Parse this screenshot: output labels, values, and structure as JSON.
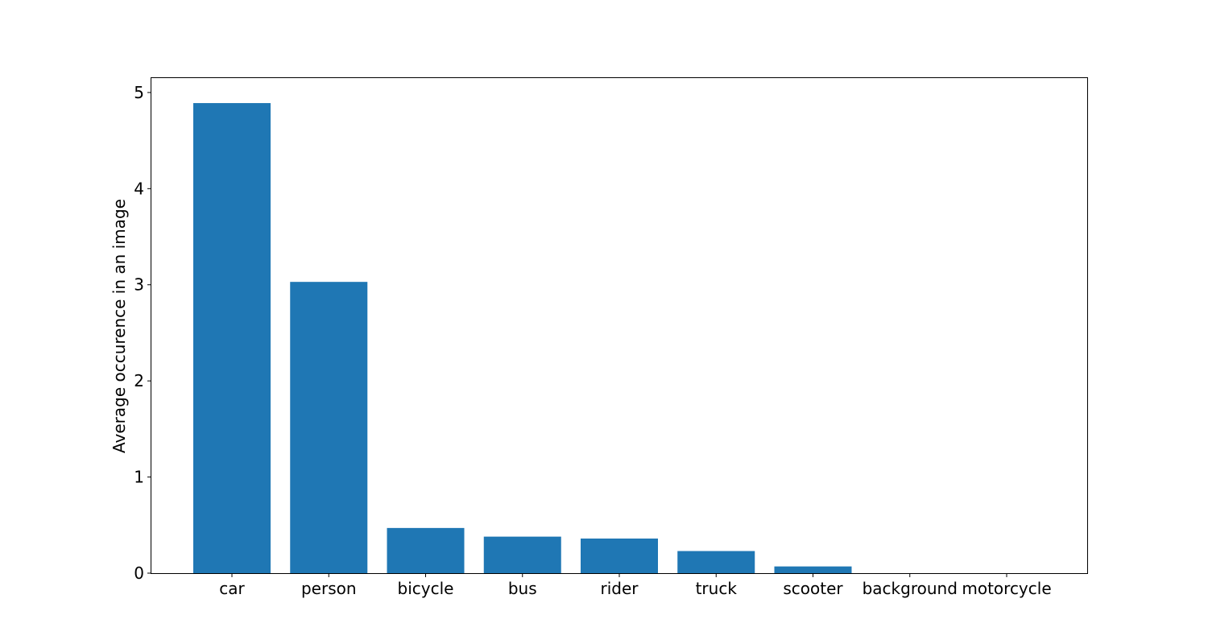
{
  "chart_data": {
    "type": "bar",
    "title": "",
    "xlabel": "",
    "ylabel": "Average occurence in an image",
    "categories": [
      "car",
      "person",
      "bicycle",
      "bus",
      "rider",
      "truck",
      "scooter",
      "background",
      "motorcycle"
    ],
    "values": [
      4.89,
      3.03,
      0.47,
      0.38,
      0.36,
      0.23,
      0.07,
      0,
      0
    ],
    "ylim": [
      0,
      5.15
    ],
    "yticks": [
      "0",
      "1",
      "2",
      "3",
      "4",
      "5"
    ],
    "grid": false,
    "bar_color": "#1f77b4"
  }
}
